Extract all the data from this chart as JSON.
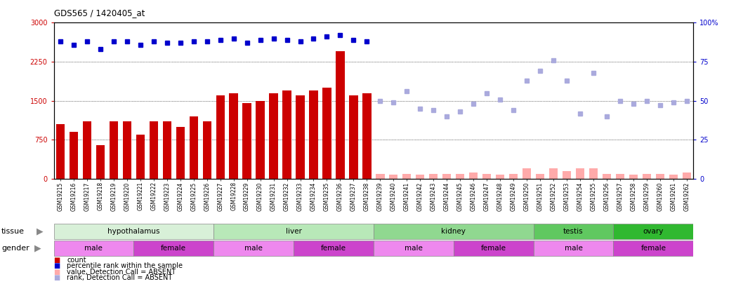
{
  "title": "GDS565 / 1420405_at",
  "samples": [
    "GSM19215",
    "GSM19216",
    "GSM19217",
    "GSM19218",
    "GSM19219",
    "GSM19220",
    "GSM19221",
    "GSM19222",
    "GSM19223",
    "GSM19224",
    "GSM19225",
    "GSM19226",
    "GSM19227",
    "GSM19228",
    "GSM19229",
    "GSM19230",
    "GSM19231",
    "GSM19232",
    "GSM19233",
    "GSM19234",
    "GSM19235",
    "GSM19236",
    "GSM19237",
    "GSM19238",
    "GSM19239",
    "GSM19240",
    "GSM19241",
    "GSM19242",
    "GSM19243",
    "GSM19244",
    "GSM19245",
    "GSM19246",
    "GSM19247",
    "GSM19248",
    "GSM19249",
    "GSM19250",
    "GSM19251",
    "GSM19252",
    "GSM19253",
    "GSM19254",
    "GSM19255",
    "GSM19256",
    "GSM19257",
    "GSM19258",
    "GSM19259",
    "GSM19260",
    "GSM19261",
    "GSM19262"
  ],
  "counts": [
    1050,
    900,
    1100,
    650,
    1100,
    1100,
    850,
    1100,
    1100,
    1000,
    1200,
    1100,
    1600,
    1650,
    1450,
    1500,
    1650,
    1700,
    1600,
    1700,
    1750,
    2450,
    1600,
    1650,
    90,
    80,
    90,
    80,
    90,
    90,
    90,
    120,
    90,
    80,
    90,
    200,
    90,
    200,
    150,
    200,
    200,
    90,
    90,
    80,
    90,
    90,
    80,
    120
  ],
  "absent": [
    false,
    false,
    false,
    false,
    false,
    false,
    false,
    false,
    false,
    false,
    false,
    false,
    false,
    false,
    false,
    false,
    false,
    false,
    false,
    false,
    false,
    false,
    false,
    false,
    true,
    true,
    true,
    true,
    true,
    true,
    true,
    true,
    true,
    true,
    true,
    true,
    true,
    true,
    true,
    true,
    true,
    true,
    true,
    true,
    true,
    true,
    true,
    true
  ],
  "percentile_ranks": [
    88,
    86,
    88,
    83,
    88,
    88,
    86,
    88,
    87,
    87,
    88,
    88,
    89,
    90,
    87,
    89,
    90,
    89,
    88,
    90,
    91,
    92,
    89,
    88,
    null,
    null,
    null,
    null,
    null,
    null,
    null,
    null,
    null,
    null,
    null,
    null,
    null,
    null,
    null,
    null,
    null,
    null,
    null,
    null,
    null,
    null,
    null,
    null
  ],
  "absent_ranks": [
    null,
    null,
    null,
    null,
    null,
    null,
    null,
    null,
    null,
    null,
    null,
    null,
    null,
    null,
    null,
    null,
    null,
    null,
    null,
    null,
    null,
    null,
    null,
    null,
    50,
    49,
    56,
    45,
    44,
    40,
    43,
    48,
    55,
    51,
    44,
    63,
    69,
    76,
    63,
    42,
    68,
    40,
    50,
    48,
    50,
    47,
    49,
    50
  ],
  "tissue_groups": [
    {
      "name": "hypothalamus",
      "start": 0,
      "end": 11,
      "color": "#d8f0d8"
    },
    {
      "name": "liver",
      "start": 12,
      "end": 23,
      "color": "#b8e8b8"
    },
    {
      "name": "kidney",
      "start": 24,
      "end": 35,
      "color": "#90d890"
    },
    {
      "name": "testis",
      "start": 36,
      "end": 41,
      "color": "#60c860"
    },
    {
      "name": "ovary",
      "start": 42,
      "end": 47,
      "color": "#30b830"
    }
  ],
  "gender_groups": [
    {
      "name": "male",
      "start": 0,
      "end": 5,
      "color": "#ee88ee"
    },
    {
      "name": "female",
      "start": 6,
      "end": 11,
      "color": "#cc44cc"
    },
    {
      "name": "male",
      "start": 12,
      "end": 17,
      "color": "#ee88ee"
    },
    {
      "name": "female",
      "start": 18,
      "end": 23,
      "color": "#cc44cc"
    },
    {
      "name": "male",
      "start": 24,
      "end": 29,
      "color": "#ee88ee"
    },
    {
      "name": "female",
      "start": 30,
      "end": 35,
      "color": "#cc44cc"
    },
    {
      "name": "male",
      "start": 36,
      "end": 41,
      "color": "#ee88ee"
    },
    {
      "name": "female",
      "start": 42,
      "end": 47,
      "color": "#cc44cc"
    }
  ],
  "ylim_left": [
    0,
    3000
  ],
  "yticks_left": [
    0,
    750,
    1500,
    2250,
    3000
  ],
  "ylim_right": [
    0,
    100
  ],
  "yticks_right": [
    0,
    25,
    50,
    75,
    100
  ],
  "bar_color_present": "#cc0000",
  "bar_color_absent": "#ffaaaa",
  "dot_color_present": "#0000cc",
  "dot_color_absent": "#aaaadd",
  "bg_color": "#ffffff",
  "grid_yticks": [
    750,
    1500,
    2250
  ],
  "legend_items": [
    {
      "color": "#cc0000",
      "label": "count"
    },
    {
      "color": "#0000cc",
      "label": "percentile rank within the sample"
    },
    {
      "color": "#ffaaaa",
      "label": "value, Detection Call = ABSENT"
    },
    {
      "color": "#aaaadd",
      "label": "rank, Detection Call = ABSENT"
    }
  ]
}
